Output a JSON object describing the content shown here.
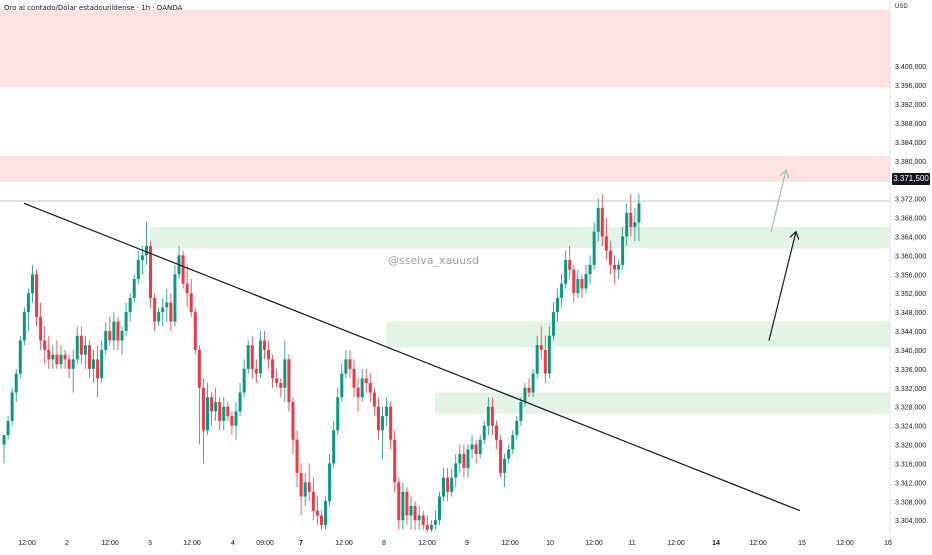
{
  "header": {
    "title": "Oro al contado/Dólar estadounidense · 1h · OANDA",
    "currency": "USD",
    "watermark": "@sselva_xauusd",
    "last_price": "3.371,500"
  },
  "colors": {
    "up": "#089981",
    "down": "#f23645",
    "supply_zone": "#fde1e3",
    "demand_zone": "#e3f3e5",
    "trendline": "#131722"
  },
  "chart_data": {
    "type": "candlestick",
    "title": "Oro al contado/Dólar estadounidense · 1h · OANDA",
    "ylabel": "USD",
    "ylim": [
      3301.5,
      3414
    ],
    "y_ticks": [
      3304,
      3308,
      3312,
      3316,
      3320,
      3324,
      3328,
      3332,
      3336,
      3340,
      3344,
      3348,
      3352,
      3356,
      3360,
      3364,
      3368,
      3372,
      3376,
      3380,
      3384,
      3388,
      3392,
      3396,
      3400
    ],
    "y_tick_labels": [
      "3.304,000",
      "3.308,000",
      "3.312,000",
      "3.316,000",
      "3.320,000",
      "3.324,000",
      "3.328,000",
      "3.332,000",
      "3.336,000",
      "3.340,000",
      "3.344,000",
      "3.348,000",
      "3.352,000",
      "3.356,000",
      "3.360,000",
      "3.364,000",
      "3.368,000",
      "3.372,000",
      "3.376,000",
      "3.380,000",
      "3.384,000",
      "3.388,000",
      "3.392,000",
      "3.396,000",
      "3.400,000"
    ],
    "x_ticks": [
      "12:00",
      "2",
      "12:00",
      "3",
      "12:00",
      "4",
      "09:00",
      "7",
      "12:00",
      "8",
      "12:00",
      "9",
      "12:00",
      "10",
      "12:00",
      "11",
      "12:00",
      "14",
      "12:00",
      "15",
      "12:00",
      "16"
    ],
    "x_ticks_bold": [
      "7",
      "14"
    ],
    "last_price": 3371.5,
    "zones": [
      {
        "kind": "supply",
        "from": 3395.5,
        "to": 3412
      },
      {
        "kind": "supply",
        "from": 3375.5,
        "to": 3381
      },
      {
        "kind": "demand",
        "from": 3361.5,
        "to": 3366
      },
      {
        "kind": "demand",
        "from": 3340.5,
        "to": 3346
      },
      {
        "kind": "demand",
        "from": 3326.5,
        "to": 3331
      }
    ],
    "trendline": {
      "start": {
        "bar": 0,
        "price": 3371
      },
      "end": {
        "bar": 188,
        "price": 3306
      }
    },
    "arrows": [
      {
        "from": {
          "bar": 180,
          "price": 3342
        },
        "to": {
          "bar": 186,
          "price": 3365
        },
        "color": "#131722"
      },
      {
        "from": {
          "bar": 181,
          "price": 3365
        },
        "to": {
          "bar": 185,
          "price": 3378
        },
        "color": "#90c8b8"
      }
    ],
    "candles": [
      [
        3320,
        3322,
        3316,
        3322
      ],
      [
        3322,
        3326,
        3321,
        3325
      ],
      [
        3325,
        3332,
        3324,
        3331
      ],
      [
        3331,
        3336,
        3329,
        3335
      ],
      [
        3335,
        3343,
        3334,
        3342
      ],
      [
        3342,
        3349,
        3341,
        3348
      ],
      [
        3348,
        3353,
        3344,
        3352
      ],
      [
        3352,
        3358,
        3350,
        3356
      ],
      [
        3356,
        3357,
        3345,
        3347
      ],
      [
        3347,
        3350,
        3340,
        3342
      ],
      [
        3342,
        3345,
        3337,
        3340
      ],
      [
        3340,
        3343,
        3336,
        3338
      ],
      [
        3338,
        3341,
        3336,
        3339
      ],
      [
        3339,
        3342,
        3336,
        3337
      ],
      [
        3337,
        3341,
        3336,
        3339
      ],
      [
        3339,
        3340,
        3336,
        3338
      ],
      [
        3338,
        3339,
        3334,
        3336
      ],
      [
        3336,
        3340,
        3331,
        3338
      ],
      [
        3338,
        3345,
        3337,
        3343
      ],
      [
        3343,
        3345,
        3337,
        3339
      ],
      [
        3339,
        3343,
        3336,
        3341
      ],
      [
        3341,
        3342,
        3334,
        3336
      ],
      [
        3336,
        3340,
        3333,
        3338
      ],
      [
        3338,
        3341,
        3330,
        3334
      ],
      [
        3334,
        3342,
        3333,
        3340
      ],
      [
        3340,
        3346,
        3339,
        3344
      ],
      [
        3344,
        3347,
        3341,
        3342
      ],
      [
        3342,
        3348,
        3340,
        3346
      ],
      [
        3346,
        3347,
        3340,
        3342
      ],
      [
        3342,
        3345,
        3339,
        3344
      ],
      [
        3344,
        3350,
        3343,
        3348
      ],
      [
        3348,
        3352,
        3346,
        3351
      ],
      [
        3351,
        3356,
        3350,
        3355
      ],
      [
        3355,
        3361,
        3354,
        3359
      ],
      [
        3359,
        3362,
        3356,
        3360
      ],
      [
        3360,
        3367,
        3358,
        3362
      ],
      [
        3362,
        3363,
        3349,
        3351
      ],
      [
        3351,
        3352,
        3344,
        3346
      ],
      [
        3346,
        3349,
        3345,
        3348
      ],
      [
        3348,
        3351,
        3345,
        3349
      ],
      [
        3349,
        3353,
        3346,
        3350
      ],
      [
        3350,
        3352,
        3344,
        3346
      ],
      [
        3346,
        3358,
        3345,
        3356
      ],
      [
        3356,
        3362,
        3355,
        3360
      ],
      [
        3360,
        3361,
        3353,
        3354
      ],
      [
        3354,
        3358,
        3349,
        3352
      ],
      [
        3352,
        3355,
        3347,
        3348
      ],
      [
        3348,
        3349,
        3339,
        3340
      ],
      [
        3340,
        3341,
        3320,
        3332
      ],
      [
        3332,
        3334,
        3316,
        3323
      ],
      [
        3323,
        3333,
        3322,
        3330
      ],
      [
        3330,
        3331,
        3324,
        3327
      ],
      [
        3327,
        3332,
        3325,
        3329
      ],
      [
        3329,
        3330,
        3323,
        3325
      ],
      [
        3325,
        3330,
        3323,
        3328
      ],
      [
        3328,
        3329,
        3325,
        3326
      ],
      [
        3326,
        3327,
        3322,
        3324
      ],
      [
        3324,
        3329,
        3321,
        3327
      ],
      [
        3327,
        3333,
        3326,
        3331
      ],
      [
        3331,
        3338,
        3330,
        3336
      ],
      [
        3336,
        3342,
        3335,
        3341
      ],
      [
        3341,
        3343,
        3334,
        3336
      ],
      [
        3336,
        3338,
        3333,
        3335
      ],
      [
        3335,
        3344,
        3334,
        3342
      ],
      [
        3342,
        3344,
        3338,
        3340
      ],
      [
        3340,
        3342,
        3336,
        3338
      ],
      [
        3338,
        3339,
        3332,
        3334
      ],
      [
        3334,
        3336,
        3332,
        3333
      ],
      [
        3333,
        3334,
        3330,
        3332
      ],
      [
        3332,
        3342,
        3329,
        3338
      ],
      [
        3338,
        3339,
        3327,
        3329
      ],
      [
        3329,
        3330,
        3318,
        3321
      ],
      [
        3321,
        3323,
        3311,
        3314
      ],
      [
        3314,
        3316,
        3305,
        3309
      ],
      [
        3309,
        3314,
        3307,
        3312
      ],
      [
        3312,
        3316,
        3308,
        3310
      ],
      [
        3310,
        3313,
        3304,
        3306
      ],
      [
        3306,
        3309,
        3303,
        3305
      ],
      [
        3305,
        3306,
        3302,
        3303
      ],
      [
        3303,
        3309,
        3302,
        3308
      ],
      [
        3308,
        3318,
        3307,
        3316
      ],
      [
        3316,
        3325,
        3315,
        3323
      ],
      [
        3323,
        3332,
        3322,
        3330
      ],
      [
        3330,
        3337,
        3329,
        3335
      ],
      [
        3335,
        3340,
        3334,
        3338
      ],
      [
        3338,
        3340,
        3334,
        3336
      ],
      [
        3336,
        3338,
        3330,
        3332
      ],
      [
        3332,
        3334,
        3327,
        3330
      ],
      [
        3330,
        3336,
        3329,
        3334
      ],
      [
        3334,
        3336,
        3331,
        3333
      ],
      [
        3333,
        3335,
        3329,
        3331
      ],
      [
        3331,
        3332,
        3326,
        3328
      ],
      [
        3328,
        3330,
        3321,
        3323
      ],
      [
        3323,
        3328,
        3317,
        3326
      ],
      [
        3326,
        3330,
        3324,
        3328
      ],
      [
        3328,
        3329,
        3319,
        3321
      ],
      [
        3321,
        3323,
        3310,
        3312
      ],
      [
        3312,
        3313,
        3302,
        3304
      ],
      [
        3304,
        3312,
        3302,
        3310
      ],
      [
        3310,
        3311,
        3303,
        3305
      ],
      [
        3305,
        3309,
        3302,
        3307
      ],
      [
        3307,
        3308,
        3302,
        3304
      ],
      [
        3304,
        3307,
        3302,
        3305
      ],
      [
        3305,
        3306,
        3302,
        3303
      ],
      [
        3303,
        3305,
        3301,
        3302
      ],
      [
        3302,
        3304,
        3301,
        3303
      ],
      [
        3303,
        3306,
        3302,
        3304
      ],
      [
        3304,
        3310,
        3303,
        3309
      ],
      [
        3309,
        3315,
        3308,
        3313
      ],
      [
        3313,
        3315,
        3308,
        3310
      ],
      [
        3310,
        3315,
        3309,
        3313
      ],
      [
        3313,
        3318,
        3311,
        3316
      ],
      [
        3316,
        3320,
        3314,
        3318
      ],
      [
        3318,
        3320,
        3313,
        3315
      ],
      [
        3315,
        3320,
        3313,
        3319
      ],
      [
        3319,
        3322,
        3317,
        3320
      ],
      [
        3320,
        3321,
        3316,
        3318
      ],
      [
        3318,
        3322,
        3317,
        3321
      ],
      [
        3321,
        3325,
        3320,
        3324
      ],
      [
        3324,
        3330,
        3322,
        3328
      ],
      [
        3328,
        3330,
        3322,
        3324
      ],
      [
        3324,
        3325,
        3319,
        3321
      ],
      [
        3321,
        3322,
        3313,
        3314
      ],
      [
        3314,
        3318,
        3311,
        3317
      ],
      [
        3317,
        3320,
        3316,
        3319
      ],
      [
        3319,
        3323,
        3318,
        3322
      ],
      [
        3322,
        3326,
        3321,
        3325
      ],
      [
        3325,
        3330,
        3324,
        3329
      ],
      [
        3329,
        3333,
        3328,
        3332
      ],
      [
        3332,
        3334,
        3330,
        3331
      ],
      [
        3331,
        3336,
        3330,
        3335
      ],
      [
        3335,
        3343,
        3334,
        3341
      ],
      [
        3341,
        3345,
        3338,
        3340
      ],
      [
        3340,
        3343,
        3333,
        3335
      ],
      [
        3335,
        3345,
        3334,
        3343
      ],
      [
        3343,
        3350,
        3342,
        3348
      ],
      [
        3348,
        3353,
        3346,
        3351
      ],
      [
        3351,
        3356,
        3349,
        3354
      ],
      [
        3354,
        3361,
        3353,
        3359
      ],
      [
        3359,
        3362,
        3355,
        3357
      ],
      [
        3357,
        3358,
        3350,
        3352
      ],
      [
        3352,
        3357,
        3351,
        3355
      ],
      [
        3355,
        3356,
        3351,
        3353
      ],
      [
        3353,
        3358,
        3352,
        3356
      ],
      [
        3356,
        3360,
        3354,
        3358
      ],
      [
        3358,
        3367,
        3357,
        3365
      ],
      [
        3365,
        3372,
        3363,
        3370
      ],
      [
        3370,
        3373,
        3362,
        3364
      ],
      [
        3364,
        3368,
        3359,
        3361
      ],
      [
        3361,
        3363,
        3356,
        3358
      ],
      [
        3358,
        3360,
        3354,
        3357
      ],
      [
        3357,
        3359,
        3355,
        3358
      ],
      [
        3358,
        3366,
        3357,
        3364
      ],
      [
        3364,
        3371,
        3362,
        3369
      ],
      [
        3369,
        3373,
        3364,
        3366
      ],
      [
        3366,
        3370,
        3363,
        3367
      ],
      [
        3367,
        3373,
        3363,
        3371
      ]
    ]
  }
}
